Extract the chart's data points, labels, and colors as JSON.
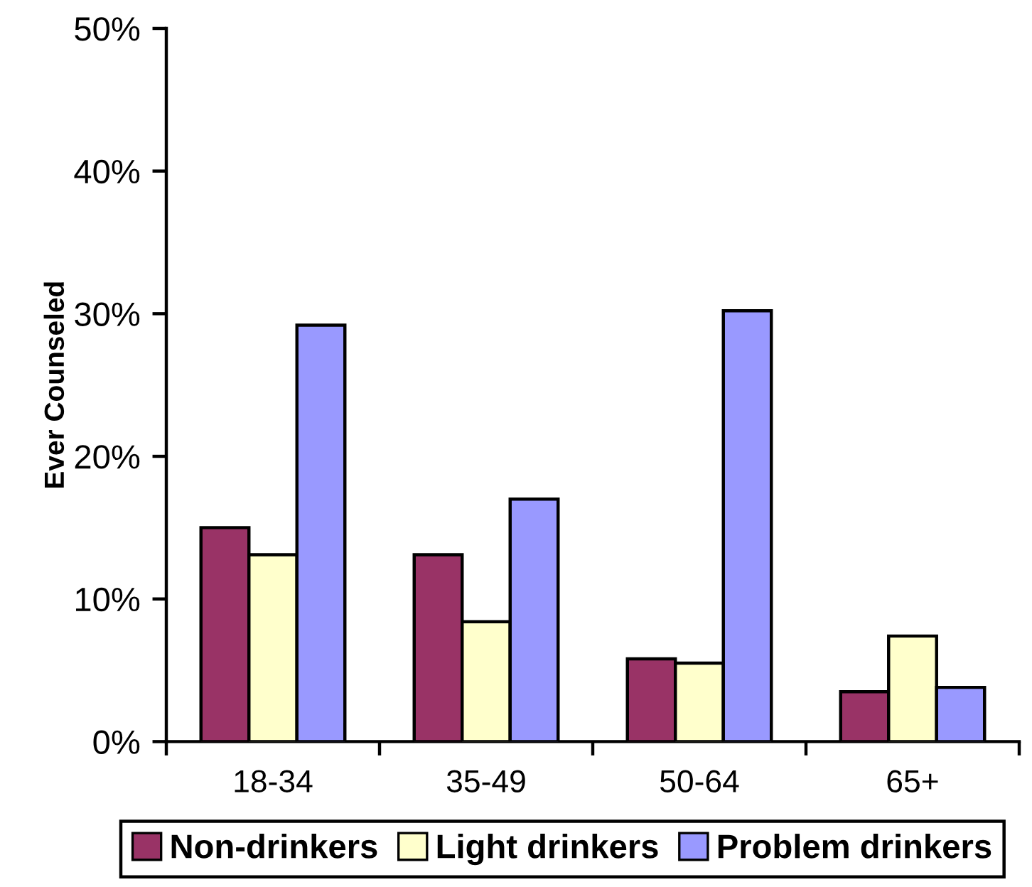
{
  "chart_data": {
    "type": "bar",
    "ylabel": "Ever Counseled",
    "categories": [
      "18-34",
      "35-49",
      "50-64",
      "65+"
    ],
    "series": [
      {
        "name": "Non-drinkers",
        "color": "#993366",
        "values": [
          15.0,
          13.1,
          5.8,
          3.5
        ]
      },
      {
        "name": "Light drinkers",
        "color": "#ffffcc",
        "values": [
          13.1,
          8.4,
          5.5,
          7.4
        ]
      },
      {
        "name": "Problem drinkers",
        "color": "#9999ff",
        "values": [
          29.2,
          17.0,
          30.2,
          3.8
        ]
      }
    ],
    "ylim": [
      0,
      50
    ],
    "yticks": [
      {
        "value": 0,
        "label": "0%"
      },
      {
        "value": 10,
        "label": "10%"
      },
      {
        "value": 20,
        "label": "20%"
      },
      {
        "value": 30,
        "label": "30%"
      },
      {
        "value": 40,
        "label": "40%"
      },
      {
        "value": 50,
        "label": "50%"
      }
    ],
    "grid": false,
    "legend": "bottom"
  }
}
